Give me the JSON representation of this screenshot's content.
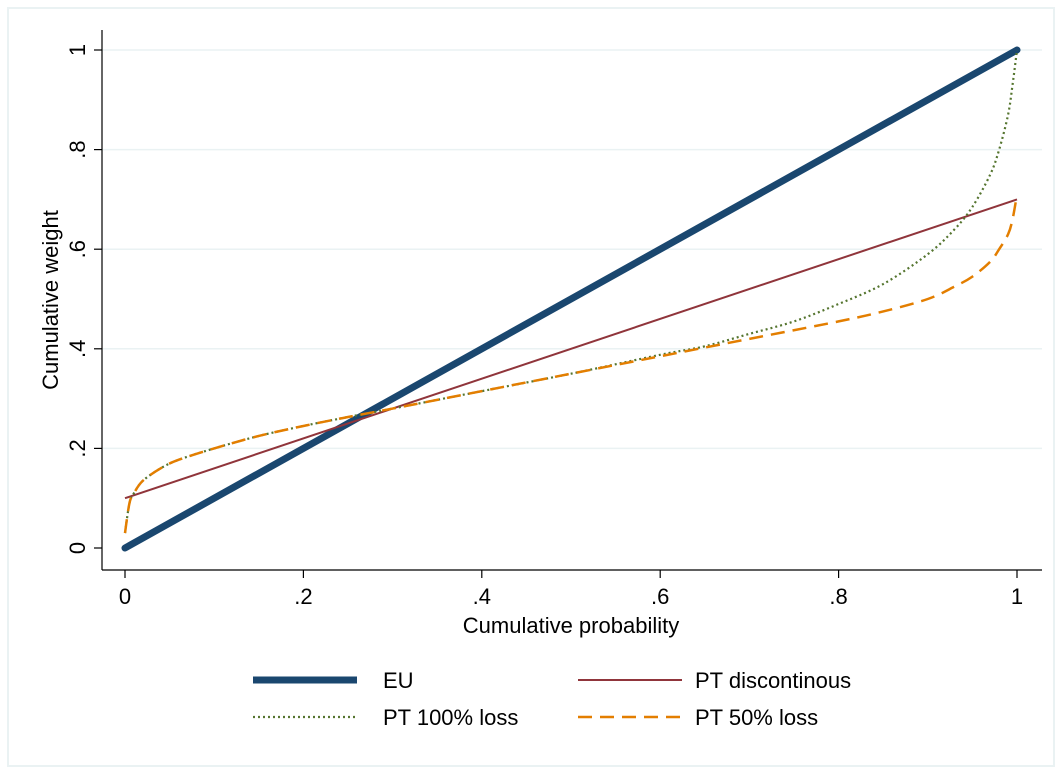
{
  "chart_data": {
    "type": "line",
    "title": "",
    "xlabel": "Cumulative probability",
    "ylabel": "Cumulative weight",
    "xlim": [
      0,
      1
    ],
    "ylim": [
      0,
      1
    ],
    "grid": true,
    "legend_position": "bottom",
    "x_ticks": [
      0,
      0.2,
      0.4,
      0.6,
      0.8,
      1
    ],
    "x_tick_labels": [
      "0",
      ".2",
      ".4",
      ".6",
      ".8",
      "1"
    ],
    "y_ticks": [
      0,
      0.2,
      0.4,
      0.6,
      0.8,
      1
    ],
    "y_tick_labels": [
      "0",
      ".2",
      ".4",
      ".6",
      ".8",
      "1"
    ],
    "series": [
      {
        "name": "EU",
        "color": "#1a476f",
        "style": "solid-thick",
        "x": [
          0,
          1
        ],
        "y": [
          0,
          1
        ]
      },
      {
        "name": "PT discontinous",
        "color": "#90353b",
        "style": "solid",
        "x": [
          0,
          1
        ],
        "y": [
          0.1,
          0.7
        ]
      },
      {
        "name": "PT 100% loss",
        "color": "#55752f",
        "style": "dotted",
        "x": [
          0,
          0.005,
          0.01,
          0.02,
          0.04,
          0.06,
          0.1,
          0.15,
          0.2,
          0.25,
          0.3,
          0.4,
          0.5,
          0.6,
          0.65,
          0.7,
          0.75,
          0.8,
          0.85,
          0.9,
          0.93,
          0.95,
          0.97,
          0.98,
          0.99,
          0.995,
          1
        ],
        "y": [
          0.03,
          0.09,
          0.11,
          0.135,
          0.16,
          0.177,
          0.2,
          0.225,
          0.245,
          0.263,
          0.28,
          0.315,
          0.35,
          0.388,
          0.405,
          0.43,
          0.455,
          0.49,
          0.53,
          0.59,
          0.64,
          0.685,
          0.75,
          0.8,
          0.87,
          0.93,
          1.0
        ]
      },
      {
        "name": "PT 50% loss",
        "color": "#e37e00",
        "style": "dashed",
        "x": [
          0,
          0.005,
          0.01,
          0.02,
          0.04,
          0.06,
          0.1,
          0.15,
          0.2,
          0.25,
          0.3,
          0.4,
          0.5,
          0.6,
          0.7,
          0.8,
          0.85,
          0.9,
          0.93,
          0.95,
          0.97,
          0.98,
          0.99,
          0.995,
          1
        ],
        "y": [
          0.03,
          0.09,
          0.11,
          0.135,
          0.16,
          0.177,
          0.2,
          0.225,
          0.245,
          0.263,
          0.28,
          0.315,
          0.35,
          0.385,
          0.42,
          0.455,
          0.475,
          0.5,
          0.525,
          0.545,
          0.575,
          0.6,
          0.63,
          0.66,
          0.71
        ]
      }
    ]
  }
}
